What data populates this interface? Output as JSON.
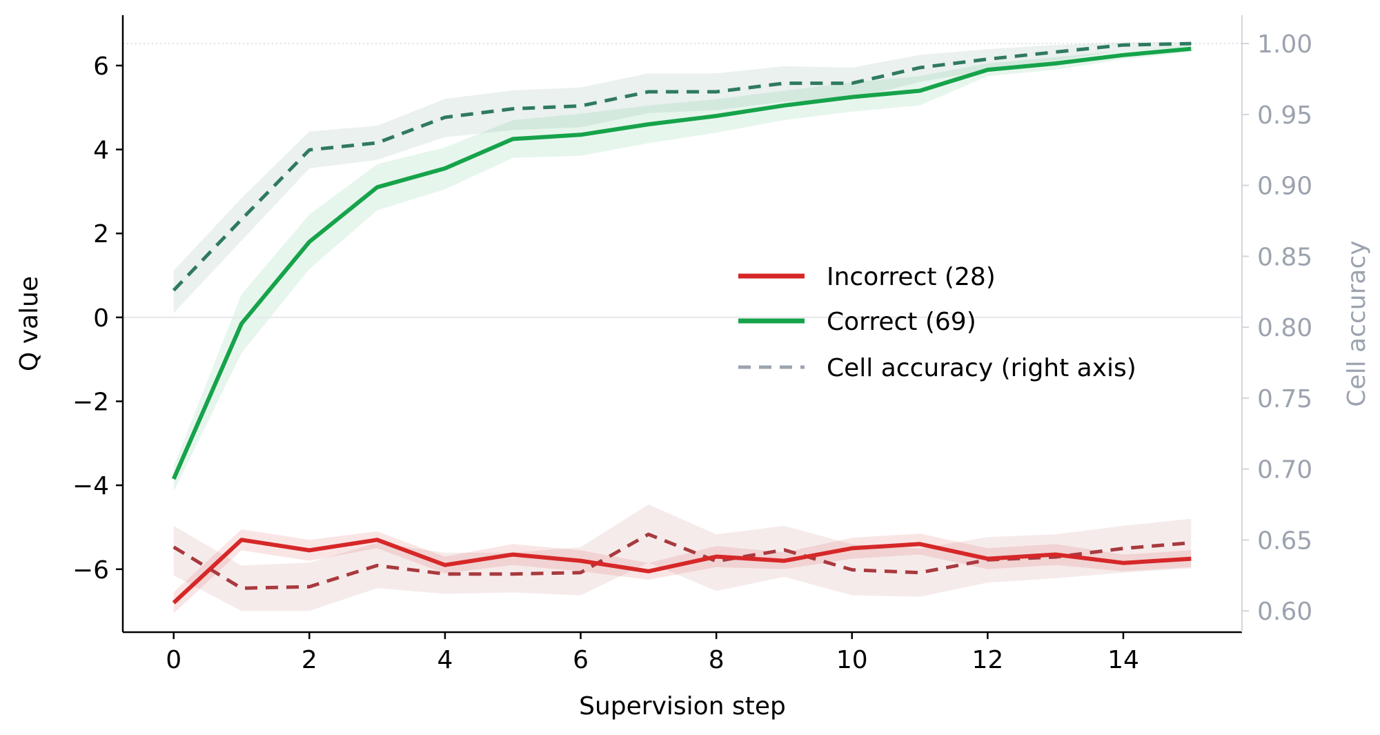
{
  "chart_data": {
    "type": "line",
    "xlabel": "Supervision step",
    "ylabel": "Q value",
    "ylabel_right": "Cell accuracy",
    "xlim": [
      -0.75,
      15.75
    ],
    "ylim": [
      -7.5,
      7.2
    ],
    "ylim_right": [
      0.585,
      1.02
    ],
    "xticks": [
      0,
      2,
      4,
      6,
      8,
      10,
      12,
      14
    ],
    "yticks": [
      -6,
      -4,
      -2,
      0,
      2,
      4,
      6
    ],
    "yticks_right": [
      0.6,
      0.65,
      0.7,
      0.75,
      0.8,
      0.85,
      0.9,
      0.95,
      1.0
    ],
    "x": [
      0,
      1,
      2,
      3,
      4,
      5,
      6,
      7,
      8,
      9,
      10,
      11,
      12,
      13,
      14,
      15
    ],
    "colors": {
      "incorrect": "#d62728",
      "correct": "#16a34a",
      "incorrect_accuracy": "#a83a3e",
      "correct_accuracy": "#2f7a5e",
      "right_axis": "#9ca3af"
    },
    "series": [
      {
        "name": "Incorrect (28)",
        "axis": "left",
        "values": [
          -6.8,
          -5.3,
          -5.55,
          -5.3,
          -5.9,
          -5.65,
          -5.8,
          -6.05,
          -5.7,
          -5.8,
          -5.5,
          -5.4,
          -5.75,
          -5.65,
          -5.85,
          -5.75
        ],
        "band_low": [
          -7.05,
          -5.55,
          -5.8,
          -5.5,
          -6.1,
          -5.9,
          -6.05,
          -6.25,
          -5.95,
          -6.0,
          -5.75,
          -5.65,
          -6.0,
          -5.9,
          -6.05,
          -5.95
        ],
        "band_high": [
          -6.55,
          -5.05,
          -5.3,
          -5.1,
          -5.7,
          -5.4,
          -5.55,
          -5.85,
          -5.45,
          -5.6,
          -5.25,
          -5.15,
          -5.5,
          -5.4,
          -5.65,
          -5.55
        ]
      },
      {
        "name": "Correct (69)",
        "axis": "left",
        "values": [
          -3.85,
          -0.15,
          1.8,
          3.1,
          3.55,
          4.25,
          4.35,
          4.6,
          4.8,
          5.05,
          5.25,
          5.4,
          5.9,
          6.05,
          6.25,
          6.4
        ],
        "band_low": [
          -4.15,
          -0.85,
          1.15,
          2.55,
          3.05,
          3.8,
          3.85,
          4.15,
          4.4,
          4.7,
          4.9,
          5.05,
          5.75,
          5.9,
          6.15,
          6.32
        ],
        "band_high": [
          -3.55,
          0.55,
          2.45,
          3.65,
          4.05,
          4.7,
          4.85,
          5.05,
          5.2,
          5.4,
          5.6,
          5.75,
          6.05,
          6.2,
          6.35,
          6.48
        ]
      },
      {
        "axis": "right",
        "style": "dashed",
        "values": [
          0.645,
          0.616,
          0.617,
          0.632,
          0.626,
          0.626,
          0.627,
          0.654,
          0.635,
          0.643,
          0.629,
          0.627,
          0.636,
          0.638,
          0.644,
          0.648
        ],
        "band_low": [
          0.625,
          0.6,
          0.6,
          0.616,
          0.612,
          0.613,
          0.611,
          0.634,
          0.614,
          0.624,
          0.611,
          0.61,
          0.62,
          0.623,
          0.627,
          0.63
        ],
        "band_high": [
          0.66,
          0.632,
          0.634,
          0.648,
          0.641,
          0.641,
          0.645,
          0.675,
          0.654,
          0.66,
          0.647,
          0.644,
          0.652,
          0.654,
          0.66,
          0.665
        ]
      },
      {
        "axis": "right",
        "style": "dashed",
        "values": [
          0.826,
          0.876,
          0.925,
          0.93,
          0.948,
          0.954,
          0.956,
          0.966,
          0.966,
          0.972,
          0.972,
          0.983,
          0.989,
          0.994,
          0.999,
          1.0
        ],
        "band_low": [
          0.81,
          0.861,
          0.912,
          0.918,
          0.934,
          0.939,
          0.941,
          0.951,
          0.953,
          0.959,
          0.961,
          0.973,
          0.981,
          0.988,
          0.995,
          0.998
        ],
        "band_high": [
          0.84,
          0.891,
          0.938,
          0.942,
          0.961,
          0.967,
          0.969,
          0.979,
          0.979,
          0.984,
          0.983,
          0.992,
          0.996,
          0.999,
          1.001,
          1.001
        ]
      }
    ],
    "legend": {
      "placement": "center-right",
      "entries": [
        "Incorrect (28)",
        "Correct (69)",
        "Cell accuracy (right axis)"
      ]
    },
    "grid": false
  }
}
